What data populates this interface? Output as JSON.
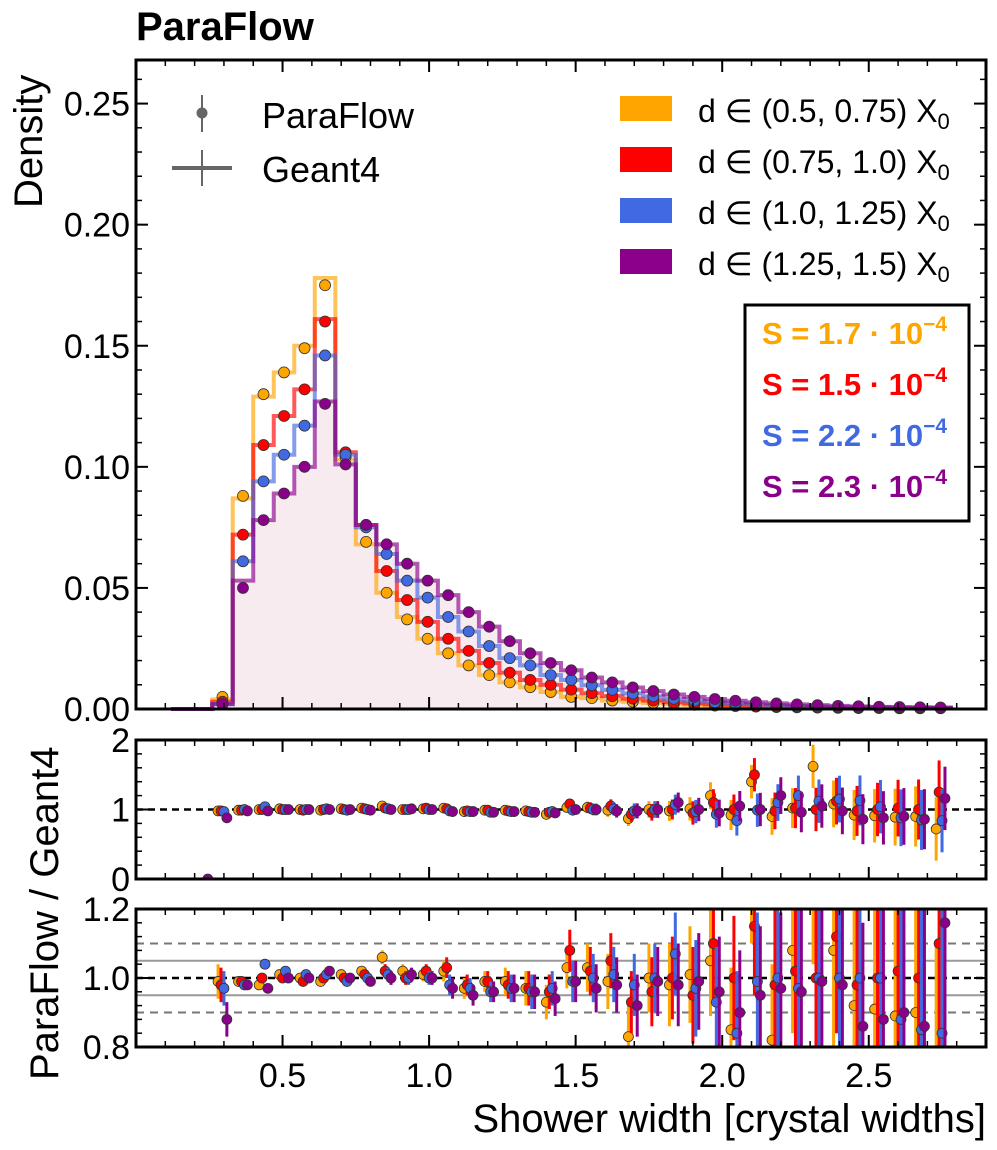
{
  "title": "ParaFlow",
  "colors": {
    "c1": "#FFA500",
    "c2": "#FF0000",
    "c3": "#4169E1",
    "c4": "#8B008B",
    "geant_fill": "#F8EBEF",
    "marker": "#666666"
  },
  "legend": {
    "paraflow": "ParaFlow",
    "geant4": "Geant4",
    "ranges": [
      "(0.5, 0.75)",
      "(0.75, 1.0)",
      "(1.0, 1.25)",
      "(1.25, 1.5)"
    ],
    "d_prefix": "d ∈ ",
    "x0": "X",
    "x0_sub": "0"
  },
  "scores": [
    "S = 1.7 · 10",
    "S = 1.5 · 10",
    "S = 2.2 · 10",
    "S = 2.3 · 10"
  ],
  "score_exp": "−4",
  "chart_data": {
    "type": "line",
    "title": "ParaFlow",
    "xlabel": "Shower width [crystal widths]",
    "ylabel_main": "Density",
    "ylabel_ratio": "ParaFlow / Geant4",
    "xlim": [
      0.0,
      2.9
    ],
    "xticks": [
      0.5,
      1.0,
      1.5,
      2.0,
      2.5
    ],
    "xticklabels": [
      "0.5",
      "1.0",
      "1.5",
      "2.0",
      "2.5"
    ],
    "main": {
      "ylim": [
        0.0,
        0.268
      ],
      "yticks": [
        0.0,
        0.05,
        0.1,
        0.15,
        0.2,
        0.25
      ],
      "yticklabels": [
        "0.00",
        "0.05",
        "0.10",
        "0.15",
        "0.20",
        "0.25"
      ]
    },
    "ratio1": {
      "ylim": [
        0,
        2
      ],
      "yticks": [
        0,
        1,
        2
      ],
      "yticklabels": [
        "0",
        "1",
        "2"
      ],
      "refline": 1.0
    },
    "ratio2": {
      "ylim": [
        0.8,
        1.2
      ],
      "yticks": [
        0.8,
        1.0,
        1.2
      ],
      "yticklabels": [
        "0.8",
        "1.0",
        "1.2"
      ],
      "refline": 1.0,
      "bands_solid": [
        0.95,
        1.05
      ],
      "bands_dashed": [
        0.9,
        1.1
      ]
    },
    "bin_edges": [
      0.12,
      0.19,
      0.26,
      0.33,
      0.4,
      0.47,
      0.54,
      0.61,
      0.68,
      0.75,
      0.82,
      0.89,
      0.96,
      1.03,
      1.1,
      1.17,
      1.24,
      1.31,
      1.38,
      1.45,
      1.52,
      1.59,
      1.66,
      1.73,
      1.8,
      1.87,
      1.94,
      2.01,
      2.08,
      2.15,
      2.22,
      2.29,
      2.36,
      2.43,
      2.5,
      2.57,
      2.64,
      2.71,
      2.78
    ],
    "series": [
      {
        "name": "d ∈ (0.5, 0.75) X0",
        "offset": -0.015,
        "geant4": [
          0.0,
          0.0,
          0.004,
          0.087,
          0.129,
          0.139,
          0.15,
          0.178,
          0.103,
          0.068,
          0.048,
          0.038,
          0.029,
          0.023,
          0.018,
          0.014,
          0.011,
          0.009,
          0.007,
          0.005,
          0.0045,
          0.0035,
          0.003,
          0.0025,
          0.002,
          0.0017,
          0.0014,
          0.0012,
          0.001,
          0.0008,
          0.0007,
          0.0006,
          0.0005,
          0.0004,
          0.0004,
          0.0003,
          0.0003,
          0.0003
        ],
        "paraflow": [
          0.0,
          0.0,
          0.005,
          0.088,
          0.13,
          0.139,
          0.149,
          0.175,
          0.104,
          0.069,
          0.048,
          0.037,
          0.029,
          0.023,
          0.018,
          0.014,
          0.011,
          0.009,
          0.007,
          0.005,
          0.0045,
          0.0035,
          0.003,
          0.0025,
          0.002,
          0.0017,
          0.0014,
          0.0012,
          0.001,
          0.0008,
          0.0007,
          0.0006,
          0.0005,
          0.0004,
          0.0004,
          0.0003,
          0.0003,
          0.0003
        ],
        "ratio": [
          null,
          null,
          0.98,
          0.99,
          1.0,
          1.01,
          1.0,
          0.99,
          1.01,
          1.02,
          1.05,
          1.0,
          1.01,
          1.02,
          0.97,
          0.99,
          0.99,
          0.98,
          0.93,
          1.03,
          1.03,
          0.99,
          0.87,
          1.0,
          0.98,
          1.01,
          1.2,
          0.92,
          1.4,
          0.9,
          1.02,
          1.62,
          1.08,
          0.92,
          0.91,
          0.89,
          0.9,
          0.72
        ],
        "ratio2": [
          null,
          null,
          0.99,
          0.99,
          0.98,
          1.01,
          1.0,
          0.99,
          1.01,
          1.02,
          1.06,
          1.02,
          1.01,
          1.02,
          0.97,
          0.99,
          0.99,
          0.97,
          0.93,
          1.03,
          1.03,
          0.99,
          0.83,
          1.0,
          0.98,
          1.01,
          1.05,
          0.85,
          1.3,
          0.82,
          1.08,
          1.3,
          1.08,
          0.92,
          0.91,
          0.89,
          0.9,
          0.72
        ],
        "err": [
          0,
          0,
          0.05,
          0.01,
          0.01,
          0.01,
          0.01,
          0.01,
          0.01,
          0.01,
          0.02,
          0.02,
          0.02,
          0.03,
          0.03,
          0.03,
          0.04,
          0.05,
          0.05,
          0.06,
          0.07,
          0.08,
          0.09,
          0.1,
          0.12,
          0.14,
          0.16,
          0.18,
          0.2,
          0.22,
          0.24,
          0.26,
          0.28,
          0.3,
          0.32,
          0.34,
          0.36,
          0.38
        ]
      },
      {
        "name": "d ∈ (0.75, 1.0) X0",
        "offset": -0.005,
        "geant4": [
          0.0,
          0.0,
          0.003,
          0.072,
          0.109,
          0.121,
          0.132,
          0.161,
          0.106,
          0.076,
          0.057,
          0.045,
          0.036,
          0.029,
          0.024,
          0.019,
          0.015,
          0.012,
          0.01,
          0.008,
          0.0065,
          0.0053,
          0.0043,
          0.0035,
          0.0028,
          0.0023,
          0.0019,
          0.0015,
          0.0012,
          0.001,
          0.0009,
          0.0007,
          0.0006,
          0.0005,
          0.0005,
          0.0004,
          0.0004,
          0.0004
        ],
        "paraflow": [
          0.0,
          0.0,
          0.003,
          0.072,
          0.109,
          0.121,
          0.132,
          0.16,
          0.106,
          0.076,
          0.057,
          0.045,
          0.036,
          0.029,
          0.024,
          0.019,
          0.015,
          0.012,
          0.01,
          0.008,
          0.0065,
          0.0053,
          0.0043,
          0.0035,
          0.0028,
          0.0023,
          0.0019,
          0.0015,
          0.0012,
          0.001,
          0.0009,
          0.0007,
          0.0006,
          0.0005,
          0.0005,
          0.0004,
          0.0004,
          0.0004
        ],
        "ratio": [
          null,
          null,
          0.98,
          0.99,
          1.0,
          1.0,
          0.99,
          1.0,
          1.0,
          1.01,
          1.02,
          1.0,
          1.02,
          1.01,
          0.98,
          0.99,
          0.98,
          0.97,
          0.96,
          1.08,
          1.02,
          1.05,
          0.93,
          0.96,
          1.0,
          0.95,
          1.1,
          1.0,
          1.5,
          0.98,
          1.02,
          1.0,
          1.12,
          0.98,
          1.0,
          1.02,
          1.0,
          1.25
        ],
        "ratio2": [
          null,
          null,
          0.98,
          0.99,
          1.0,
          1.0,
          0.99,
          1.0,
          1.0,
          1.01,
          1.02,
          1.0,
          1.02,
          1.03,
          0.98,
          0.99,
          0.98,
          0.97,
          0.96,
          1.08,
          1.02,
          1.05,
          0.93,
          0.96,
          1.0,
          0.95,
          1.1,
          1.0,
          1.15,
          0.98,
          1.02,
          1.0,
          1.12,
          0.98,
          1.0,
          1.02,
          1.0,
          1.1
        ],
        "err": [
          0,
          0,
          0.05,
          0.01,
          0.01,
          0.01,
          0.01,
          0.01,
          0.01,
          0.01,
          0.02,
          0.02,
          0.02,
          0.03,
          0.03,
          0.03,
          0.04,
          0.05,
          0.05,
          0.06,
          0.07,
          0.08,
          0.09,
          0.1,
          0.12,
          0.14,
          0.16,
          0.18,
          0.2,
          0.22,
          0.24,
          0.26,
          0.28,
          0.3,
          0.32,
          0.34,
          0.36,
          0.38
        ]
      },
      {
        "name": "d ∈ (1.0, 1.25) X0",
        "offset": 0.005,
        "geant4": [
          0.0,
          0.0,
          0.002,
          0.061,
          0.094,
          0.105,
          0.117,
          0.146,
          0.105,
          0.075,
          0.064,
          0.053,
          0.046,
          0.038,
          0.032,
          0.026,
          0.021,
          0.018,
          0.014,
          0.012,
          0.0098,
          0.0079,
          0.0064,
          0.0052,
          0.0042,
          0.0034,
          0.0028,
          0.0023,
          0.0019,
          0.0016,
          0.0013,
          0.0011,
          0.0009,
          0.0008,
          0.0007,
          0.0006,
          0.0005,
          0.0005
        ],
        "paraflow": [
          0.0,
          0.0,
          0.002,
          0.061,
          0.094,
          0.105,
          0.117,
          0.146,
          0.105,
          0.075,
          0.064,
          0.053,
          0.046,
          0.038,
          0.032,
          0.026,
          0.021,
          0.018,
          0.014,
          0.012,
          0.0098,
          0.0079,
          0.0064,
          0.0052,
          0.0042,
          0.0034,
          0.0028,
          0.0023,
          0.0019,
          0.0016,
          0.0013,
          0.0011,
          0.0009,
          0.0008,
          0.0007,
          0.0006,
          0.0005,
          0.0005
        ],
        "ratio": [
          null,
          null,
          0.97,
          1.0,
          1.04,
          1.0,
          1.0,
          1.01,
          0.99,
          1.0,
          1.01,
          1.0,
          1.0,
          0.98,
          0.97,
          0.96,
          0.97,
          0.96,
          0.97,
          0.99,
          1.0,
          1.01,
          0.98,
          1.0,
          1.07,
          0.97,
          0.93,
          0.84,
          0.99,
          1.1,
          1.2,
          1.12,
          1.15,
          1.13,
          1.04,
          0.88,
          0.85,
          0.84
        ],
        "ratio2": [
          null,
          null,
          0.97,
          0.98,
          1.04,
          1.02,
          1.01,
          1.01,
          0.99,
          1.0,
          1.01,
          1.0,
          1.0,
          0.98,
          0.97,
          0.96,
          0.97,
          0.96,
          0.97,
          0.99,
          1.0,
          1.01,
          0.98,
          1.0,
          1.07,
          0.97,
          0.93,
          0.84,
          0.99,
          1.0,
          0.97,
          1.0,
          1.0,
          1.0,
          1.0,
          0.88,
          0.85,
          0.84
        ],
        "err": [
          0,
          0,
          0.05,
          0.01,
          0.01,
          0.01,
          0.01,
          0.01,
          0.01,
          0.01,
          0.02,
          0.02,
          0.02,
          0.03,
          0.03,
          0.03,
          0.04,
          0.05,
          0.05,
          0.06,
          0.07,
          0.08,
          0.09,
          0.1,
          0.12,
          0.14,
          0.16,
          0.18,
          0.2,
          0.22,
          0.24,
          0.26,
          0.28,
          0.3,
          0.32,
          0.34,
          0.36,
          0.38
        ]
      },
      {
        "name": "d ∈ (1.25, 1.5) X0",
        "offset": 0.015,
        "geant4": [
          0.0,
          0.0,
          0.002,
          0.053,
          0.078,
          0.089,
          0.1,
          0.127,
          0.101,
          0.076,
          0.068,
          0.06,
          0.053,
          0.047,
          0.04,
          0.034,
          0.028,
          0.023,
          0.019,
          0.016,
          0.013,
          0.011,
          0.0089,
          0.0074,
          0.006,
          0.005,
          0.0041,
          0.0034,
          0.0028,
          0.0023,
          0.0019,
          0.0016,
          0.0013,
          0.0011,
          0.0009,
          0.0008,
          0.0007,
          0.0006
        ],
        "paraflow": [
          0.0,
          0.0,
          0.002,
          0.05,
          0.078,
          0.089,
          0.1,
          0.126,
          0.101,
          0.076,
          0.068,
          0.06,
          0.053,
          0.047,
          0.04,
          0.034,
          0.028,
          0.023,
          0.019,
          0.016,
          0.013,
          0.011,
          0.0089,
          0.0074,
          0.006,
          0.005,
          0.0041,
          0.0034,
          0.0028,
          0.0023,
          0.0019,
          0.0016,
          0.0013,
          0.0011,
          0.0009,
          0.0008,
          0.0007,
          0.0006
        ],
        "ratio": [
          null,
          null,
          0.88,
          0.98,
          0.98,
          1.0,
          1.0,
          1.0,
          1.0,
          0.99,
          1.0,
          1.01,
          1.0,
          0.97,
          0.97,
          0.96,
          0.97,
          0.96,
          0.95,
          1.0,
          1.0,
          0.98,
          0.98,
          1.0,
          1.1,
          1.0,
          0.95,
          1.05,
          1.0,
          1.2,
          0.96,
          1.05,
          0.98,
          0.86,
          0.88,
          0.9,
          0.86,
          1.16
        ],
        "ratio2": [
          null,
          null,
          0.88,
          0.98,
          0.97,
          1.0,
          1.0,
          1.02,
          1.0,
          0.99,
          1.0,
          1.01,
          1.0,
          0.97,
          0.95,
          0.96,
          0.97,
          0.96,
          0.94,
          0.99,
          0.97,
          0.98,
          0.92,
          0.99,
          0.98,
          0.99,
          0.96,
          0.9,
          0.95,
          0.97,
          0.96,
          0.99,
          0.98,
          0.86,
          0.88,
          0.9,
          0.86,
          1.16
        ],
        "err": [
          0,
          0,
          0.05,
          0.01,
          0.01,
          0.01,
          0.01,
          0.01,
          0.01,
          0.01,
          0.02,
          0.02,
          0.02,
          0.03,
          0.03,
          0.03,
          0.04,
          0.05,
          0.05,
          0.06,
          0.07,
          0.08,
          0.09,
          0.1,
          0.12,
          0.14,
          0.16,
          0.18,
          0.2,
          0.22,
          0.24,
          0.26,
          0.28,
          0.3,
          0.32,
          0.34,
          0.36,
          0.38
        ]
      }
    ]
  }
}
